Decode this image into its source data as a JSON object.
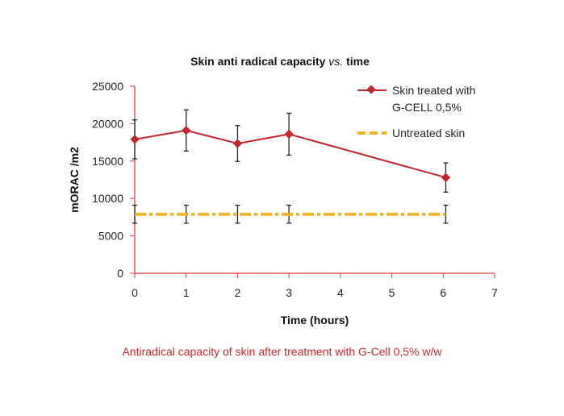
{
  "chart_data": {
    "type": "line",
    "title": "Skin anti radical capacity",
    "title_italic": "vs.",
    "title_end": "time",
    "xlabel": "Time (hours)",
    "ylabel": "mORAC /m2",
    "xlim": [
      0,
      7
    ],
    "ylim": [
      0,
      25000
    ],
    "xticks": [
      "0",
      "1",
      "2",
      "3",
      "4",
      "5",
      "6",
      "7"
    ],
    "yticks": [
      "0",
      "5000",
      "10000",
      "15000",
      "20000",
      "25000"
    ],
    "grid": false,
    "legend_position": "top-right",
    "series": [
      {
        "name": "Skin treated with G-CELL 0,5%",
        "legend_line1": "Skin treated with",
        "legend_line2": "G-CELL 0,5%",
        "color": "#c0272d",
        "style": "solid-diamond",
        "x": [
          0,
          1,
          2,
          3,
          6.05
        ],
        "y": [
          17900,
          19100,
          17350,
          18600,
          12800
        ],
        "error": [
          2600,
          2750,
          2400,
          2800,
          1950
        ]
      },
      {
        "name": "Untreated skin",
        "color": "#f2b52a",
        "style": "dash-dot",
        "x": [
          0,
          1,
          2,
          3,
          6.05
        ],
        "y": [
          7900,
          7900,
          7900,
          7900,
          7900
        ],
        "error": [
          1200,
          1200,
          1200,
          1200,
          1200
        ]
      }
    ]
  },
  "caption": "Antiradical capacity of skin after treatment with G-Cell 0,5% w/w"
}
